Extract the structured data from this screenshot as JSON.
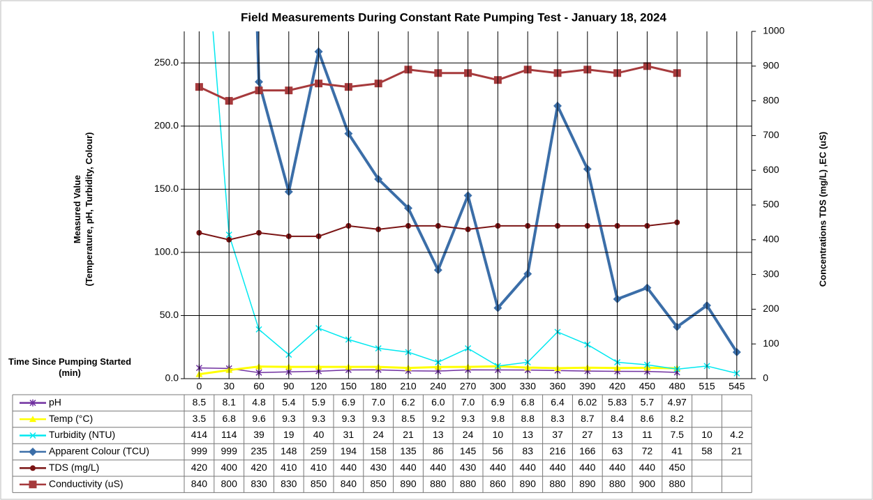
{
  "chart_data": {
    "type": "line",
    "title": "Field Measurements During Constant Rate Pumping Test - January 18, 2024",
    "y_label": [
      "Measured Value",
      "(Temperature, pH, Turbidity,  Colour)"
    ],
    "y2_label": "Concentrations TDS (mg/L) ,EC (uS)",
    "x_label": "Time Since Pumping Started (min)",
    "categories": [
      "0",
      "30",
      "60",
      "90",
      "120",
      "150",
      "180",
      "210",
      "240",
      "270",
      "300",
      "330",
      "360",
      "390",
      "420",
      "450",
      "480",
      "515",
      "545"
    ],
    "ylim": [
      0,
      275
    ],
    "yticks": [
      {
        "value": 0,
        "label": "0.0"
      },
      {
        "value": 50,
        "label": "50.0"
      },
      {
        "value": 100,
        "label": "100.0"
      },
      {
        "value": 150,
        "label": "150.0"
      },
      {
        "value": 200,
        "label": "200.0"
      },
      {
        "value": 250,
        "label": "250.0"
      }
    ],
    "y2lim": [
      0,
      1000
    ],
    "y2ticks": [
      0,
      100,
      200,
      300,
      400,
      500,
      600,
      700,
      800,
      900,
      1000
    ],
    "grid": true,
    "series": [
      {
        "name": "pH",
        "color": "#7030a0",
        "marker": "star",
        "values": [
          8.5,
          8.1,
          4.8,
          5.4,
          5.9,
          6.9,
          7.0,
          6.2,
          6.0,
          7.0,
          6.9,
          6.8,
          6.4,
          6.02,
          5.83,
          5.7,
          4.97,
          null,
          null
        ],
        "value_labels": [
          "8.5",
          "8.1",
          "4.8",
          "5.4",
          "5.9",
          "6.9",
          "7.0",
          "6.2",
          "6.0",
          "7.0",
          "6.9",
          "6.8",
          "6.4",
          "6.02",
          "5.83",
          "5.7",
          "4.97",
          null,
          null
        ]
      },
      {
        "name": "Temp (°C)",
        "color": "#ffff00",
        "marker": "triangle",
        "values": [
          3.5,
          6.8,
          9.6,
          9.3,
          9.3,
          9.3,
          9.3,
          8.5,
          9.2,
          9.3,
          9.8,
          8.8,
          8.3,
          8.7,
          8.4,
          8.6,
          8.2,
          null,
          null
        ]
      },
      {
        "name": "Turbidity (NTU)",
        "color": "#00e8f0",
        "marker": "x",
        "values": [
          414,
          114,
          39,
          19,
          40,
          31,
          24,
          21,
          13,
          24,
          10,
          13,
          37,
          27,
          13,
          11,
          7.5,
          10,
          4.2
        ]
      },
      {
        "name": "Apparent Colour (TCU)",
        "color": "#3b6ea8",
        "marker": "diamond",
        "values": [
          999,
          999,
          235,
          148,
          259,
          194,
          158,
          135,
          86,
          145,
          56,
          83,
          216,
          166,
          63,
          72,
          41,
          58,
          21
        ]
      },
      {
        "name": "TDS (mg/L)",
        "color": "#7a1414",
        "marker": "circle",
        "axis": "y2",
        "values": [
          420,
          400,
          420,
          410,
          410,
          440,
          430,
          440,
          440,
          430,
          440,
          440,
          440,
          440,
          440,
          440,
          450,
          null,
          null
        ]
      },
      {
        "name": "Conductivity (uS)",
        "color": "#a63a3c",
        "marker": "square",
        "axis": "y2",
        "values": [
          840,
          800,
          830,
          830,
          850,
          840,
          850,
          890,
          880,
          880,
          860,
          890,
          880,
          890,
          880,
          900,
          880,
          null,
          null
        ]
      }
    ]
  }
}
